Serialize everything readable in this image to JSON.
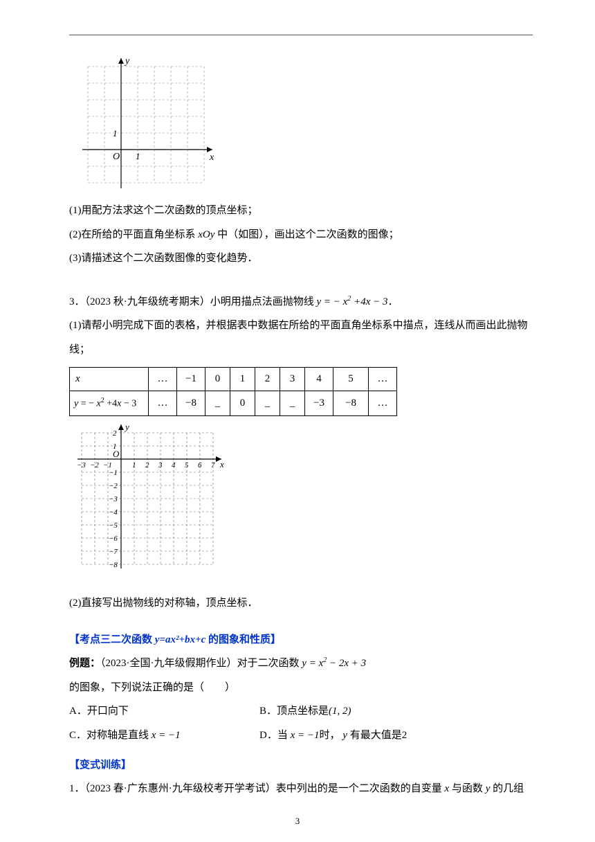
{
  "figure1": {
    "x_label": "x",
    "y_label": "y",
    "origin_label": "O",
    "tick_x": "1",
    "tick_y": "1",
    "grid_x_min": -2,
    "grid_x_max": 5,
    "grid_y_min": -2,
    "grid_y_max": 5,
    "cell": 24,
    "grid_color": "#888",
    "axis_color": "#000"
  },
  "q1_1": "(1)用配方法求这个二次函数的顶点坐标；",
  "q1_2_a": "(2)在所给的平面直角坐标系 ",
  "q1_2_b": "xOy",
  "q1_2_c": " 中（如图），画出这个二次函数的图像；",
  "q1_3": "(3)请描述这个二次函数图像的变化趋势．",
  "q3_intro_a": "3．（2023 秋·九年级统考期末）小明用描点法画抛物线 ",
  "q3_intro_eq": "y = − x² +4x − 3",
  "q3_intro_b": "．",
  "q3_1": "(1)请帮小明完成下面的表格，并根据表中数据在所给的平面直角坐标系中描点，连线从而画出此抛物线；",
  "table": {
    "widths": [
      105,
      40,
      40,
      35,
      35,
      35,
      35,
      40,
      50,
      40
    ],
    "row1": [
      "x",
      "…",
      "−1",
      "0",
      "1",
      "2",
      "3",
      "4",
      "5",
      "…"
    ],
    "row2": [
      "y = − x² +4x − 3",
      "…",
      "−8",
      "_",
      "0",
      "_",
      "_",
      "−3",
      "−8",
      "…"
    ]
  },
  "figure2": {
    "x_label": "x",
    "y_label": "y",
    "origin_label": "O",
    "x_ticks": [
      "−3",
      "−2",
      "−1",
      "1",
      "2",
      "3",
      "4",
      "5",
      "6",
      "7"
    ],
    "x_positions": [
      -3,
      -2,
      -1,
      1,
      2,
      3,
      4,
      5,
      6,
      7
    ],
    "y_ticks": [
      "2",
      "1",
      "−1",
      "−2",
      "−3",
      "−4",
      "−5",
      "−6",
      "−7",
      "−8"
    ],
    "y_positions": [
      2,
      1,
      -1,
      -2,
      -3,
      -4,
      -5,
      -6,
      -7,
      -8
    ],
    "cell": 19,
    "grid_color": "#666",
    "axis_color": "#000"
  },
  "q3_2": "(2)直接写出抛物线的对称轴，顶点坐标．",
  "section_heading_a": "【考点三二次函数 ",
  "section_heading_eq": "y=ax²+bx+c",
  "section_heading_b": " 的图象和性质】",
  "example_label": "例题：",
  "example_text_a": "（2023·全国·九年级假期作业）对于二次函数 ",
  "example_eq": "y = x² − 2x + 3",
  "example_text_b": " 的图象，下列说法正确的是（　　）",
  "choice_A": "A．开口向下",
  "choice_B_a": "B．顶点坐标是",
  "choice_B_b": "(1, 2)",
  "choice_C_a": "C．对称轴是直线 ",
  "choice_C_b": "x = −1",
  "choice_D_a": "D．当 ",
  "choice_D_b": "x = −1",
  "choice_D_c": "时， ",
  "choice_D_d": "y",
  "choice_D_e": " 有最大值是",
  "choice_D_f": "2",
  "variant_heading": "【变式训练】",
  "q_last_a": "1．（2023 春·广东惠州·九年级校考开学考试）表中列出的是一个二次函数的自变量 ",
  "q_last_x": "x",
  "q_last_b": " 与函数 ",
  "q_last_y": "y",
  "q_last_c": " 的几组",
  "page_number": "3"
}
